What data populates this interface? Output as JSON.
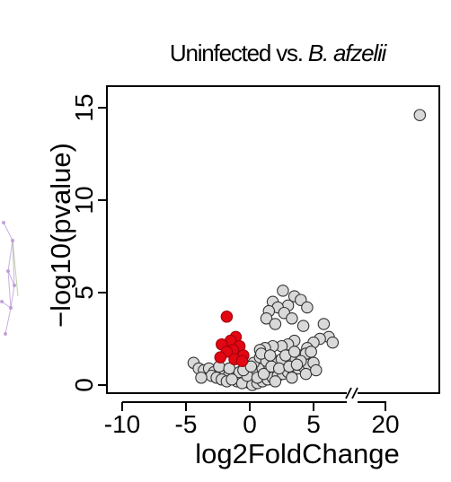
{
  "chart_data": {
    "type": "scatter",
    "title_plain": "Uninfected vs. ",
    "title_italic": "B. afzelii",
    "xlabel": "log2FoldChange",
    "ylabel": "−log10(pvalue)",
    "xlim": [
      -11,
      8
    ],
    "xlim_broken_right": [
      18,
      25
    ],
    "ylim": [
      -0.3,
      16.2
    ],
    "x_ticks": [
      {
        "value": -10,
        "label": "-10"
      },
      {
        "value": -5,
        "label": "-5"
      },
      {
        "value": 0,
        "label": "0"
      },
      {
        "value": 5,
        "label": "5"
      },
      {
        "value": 20,
        "label": "20"
      }
    ],
    "y_ticks": [
      {
        "value": 0,
        "label": "0"
      },
      {
        "value": 5,
        "label": "5"
      },
      {
        "value": 10,
        "label": "10"
      },
      {
        "value": 15,
        "label": "15"
      }
    ],
    "axis_break": true,
    "grid": false,
    "colors": {
      "significant": "#e30613",
      "other": "#d9d9d9",
      "outline": "#333333",
      "decor": "#b58fd6"
    },
    "series": [
      {
        "significant": false,
        "points": [
          [
            22.7,
            14.6
          ],
          [
            2.6,
            5.1
          ],
          [
            3.5,
            4.8
          ],
          [
            4.0,
            4.6
          ],
          [
            1.8,
            4.5
          ],
          [
            4.5,
            4.2
          ],
          [
            3.0,
            4.3
          ],
          [
            2.2,
            4.2
          ],
          [
            1.5,
            4.0
          ],
          [
            2.7,
            3.9
          ],
          [
            1.3,
            3.6
          ],
          [
            3.3,
            3.6
          ],
          [
            5.8,
            3.3
          ],
          [
            2.0,
            3.3
          ],
          [
            4.2,
            3.2
          ],
          [
            6.2,
            2.6
          ],
          [
            6.5,
            2.3
          ],
          [
            5.5,
            2.5
          ],
          [
            5.0,
            2.3
          ],
          [
            3.5,
            2.4
          ],
          [
            3.0,
            2.2
          ],
          [
            2.5,
            2.1
          ],
          [
            1.8,
            2.1
          ],
          [
            1.2,
            2.0
          ],
          [
            4.5,
            2.0
          ],
          [
            0.8,
            1.9
          ],
          [
            -4.4,
            1.2
          ],
          [
            -4.0,
            0.9
          ],
          [
            -3.6,
            0.8
          ],
          [
            -3.2,
            0.9
          ],
          [
            -2.8,
            0.7
          ],
          [
            -2.4,
            0.6
          ],
          [
            -2.0,
            0.5
          ],
          [
            -1.6,
            0.6
          ],
          [
            -1.2,
            0.4
          ],
          [
            -0.8,
            0.3
          ],
          [
            -0.4,
            0.2
          ],
          [
            0.0,
            0.1
          ],
          [
            0.4,
            0.2
          ],
          [
            0.8,
            0.4
          ],
          [
            1.2,
            0.5
          ],
          [
            1.6,
            0.7
          ],
          [
            2.0,
            0.8
          ],
          [
            2.4,
            1.0
          ],
          [
            2.8,
            1.1
          ],
          [
            3.2,
            1.3
          ],
          [
            3.6,
            1.4
          ],
          [
            4.0,
            1.6
          ],
          [
            4.4,
            1.7
          ],
          [
            4.8,
            1.8
          ],
          [
            -3.0,
            0.5
          ],
          [
            -2.6,
            0.4
          ],
          [
            -2.2,
            0.3
          ],
          [
            -1.8,
            0.2
          ],
          [
            -1.0,
            0.2
          ],
          [
            -0.6,
            0.1
          ],
          [
            0.2,
            0.0
          ],
          [
            0.6,
            0.1
          ],
          [
            1.0,
            0.2
          ],
          [
            1.4,
            0.3
          ],
          [
            1.8,
            0.4
          ],
          [
            2.2,
            0.5
          ],
          [
            2.6,
            0.6
          ],
          [
            3.0,
            0.7
          ],
          [
            3.4,
            0.8
          ],
          [
            3.8,
            0.9
          ],
          [
            4.2,
            1.0
          ],
          [
            4.6,
            1.1
          ],
          [
            5.0,
            1.2
          ],
          [
            0.5,
            0.7
          ],
          [
            1.0,
            0.9
          ],
          [
            1.5,
            1.1
          ],
          [
            2.0,
            1.3
          ],
          [
            2.5,
            1.4
          ],
          [
            0.3,
            1.2
          ],
          [
            0.8,
            1.5
          ],
          [
            1.3,
            1.3
          ],
          [
            2.8,
            1.6
          ],
          [
            3.5,
            1.8
          ],
          [
            4.0,
            1.3
          ],
          [
            -2.4,
            1.0
          ],
          [
            -1.6,
            0.9
          ],
          [
            -0.8,
            0.7
          ],
          [
            -0.2,
            0.5
          ],
          [
            -3.8,
            0.4
          ],
          [
            -1.4,
            0.3
          ],
          [
            0.6,
            0.4
          ],
          [
            2.0,
            0.2
          ],
          [
            3.3,
            0.4
          ],
          [
            4.4,
            0.6
          ],
          [
            5.2,
            0.8
          ],
          [
            1.1,
            0.6
          ],
          [
            1.7,
            1.0
          ],
          [
            2.3,
            0.9
          ],
          [
            3.1,
            1.0
          ],
          [
            3.7,
            1.1
          ],
          [
            -0.5,
            0.8
          ],
          [
            0.1,
            1.0
          ],
          [
            0.9,
            1.7
          ],
          [
            1.6,
            1.6
          ]
        ]
      },
      {
        "significant": true,
        "points": [
          [
            -1.8,
            3.7
          ],
          [
            -1.1,
            2.6
          ],
          [
            -1.5,
            2.4
          ],
          [
            -2.2,
            2.2
          ],
          [
            -0.8,
            2.1
          ],
          [
            -1.3,
            1.9
          ],
          [
            -1.8,
            1.8
          ],
          [
            -0.5,
            1.6
          ],
          [
            -2.3,
            1.5
          ],
          [
            -1.2,
            1.4
          ],
          [
            -0.6,
            1.3
          ]
        ]
      }
    ]
  }
}
